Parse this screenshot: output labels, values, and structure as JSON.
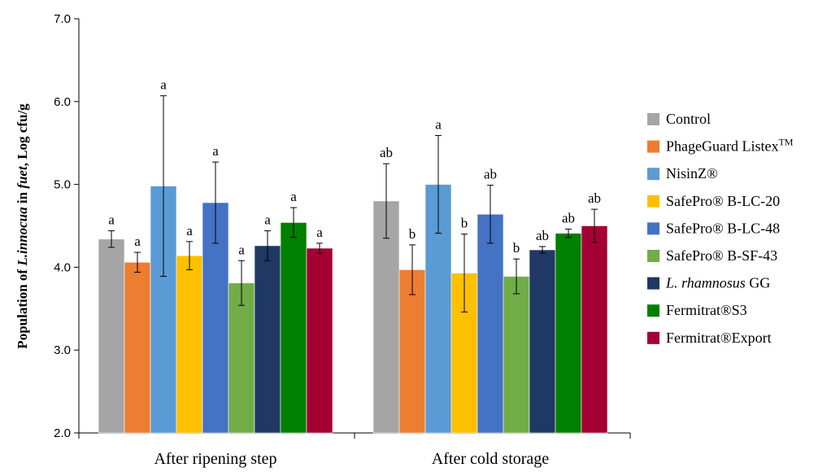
{
  "chart_data": {
    "type": "bar",
    "ylabel": {
      "prefix": "Population of ",
      "organism": "L.innocua",
      "middle": " in ",
      "product": "fuet",
      "suffix": ", Log cfu/g"
    },
    "ylim": [
      2.0,
      7.0
    ],
    "yticks": [
      "2.0",
      "3.0",
      "4.0",
      "5.0",
      "6.0",
      "7.0"
    ],
    "grid": false,
    "legend_position": "right",
    "categories": [
      "After ripening step",
      "After cold storage"
    ],
    "series": [
      {
        "name": "Control",
        "color": "#a5a5a5",
        "values": [
          4.34,
          4.8
        ],
        "errors": [
          0.1,
          0.45
        ],
        "labels": [
          "a",
          "ab"
        ]
      },
      {
        "name": "PhageGuard Listex",
        "name_sup": "TM",
        "color": "#ed7d31",
        "values": [
          4.06,
          3.97
        ],
        "errors": [
          0.12,
          0.3
        ],
        "labels": [
          "a",
          "b"
        ]
      },
      {
        "name": "NisinZ®",
        "color": "#5b9bd5",
        "values": [
          4.98,
          5.0
        ],
        "errors": [
          1.09,
          0.59
        ],
        "labels": [
          "a",
          "a"
        ]
      },
      {
        "name": "SafePro® B-LC-20",
        "color": "#ffc000",
        "values": [
          4.14,
          3.93
        ],
        "errors": [
          0.17,
          0.47
        ],
        "labels": [
          "a",
          "b"
        ]
      },
      {
        "name": "SafePro® B-LC-48",
        "color": "#4472c4",
        "values": [
          4.78,
          4.64
        ],
        "errors": [
          0.49,
          0.35
        ],
        "labels": [
          "a",
          "ab"
        ]
      },
      {
        "name": "SafePro® B-SF-43",
        "color": "#70ad47",
        "values": [
          3.81,
          3.89
        ],
        "errors": [
          0.27,
          0.21
        ],
        "labels": [
          "a",
          "b"
        ]
      },
      {
        "name": "L. rhamnosus",
        "name_italic": true,
        "name_tail": " GG",
        "color": "#1f3864",
        "values": [
          4.26,
          4.21
        ],
        "errors": [
          0.18,
          0.04
        ],
        "labels": [
          "a",
          "ab"
        ]
      },
      {
        "name": "Fermitrat®S3",
        "color": "#008000",
        "values": [
          4.54,
          4.41
        ],
        "errors": [
          0.18,
          0.05
        ],
        "labels": [
          "a",
          "ab"
        ]
      },
      {
        "name": "Fermitrat®Export",
        "color": "#a50034",
        "values": [
          4.23,
          4.5
        ],
        "errors": [
          0.06,
          0.2
        ],
        "labels": [
          "a",
          "ab"
        ]
      }
    ]
  }
}
